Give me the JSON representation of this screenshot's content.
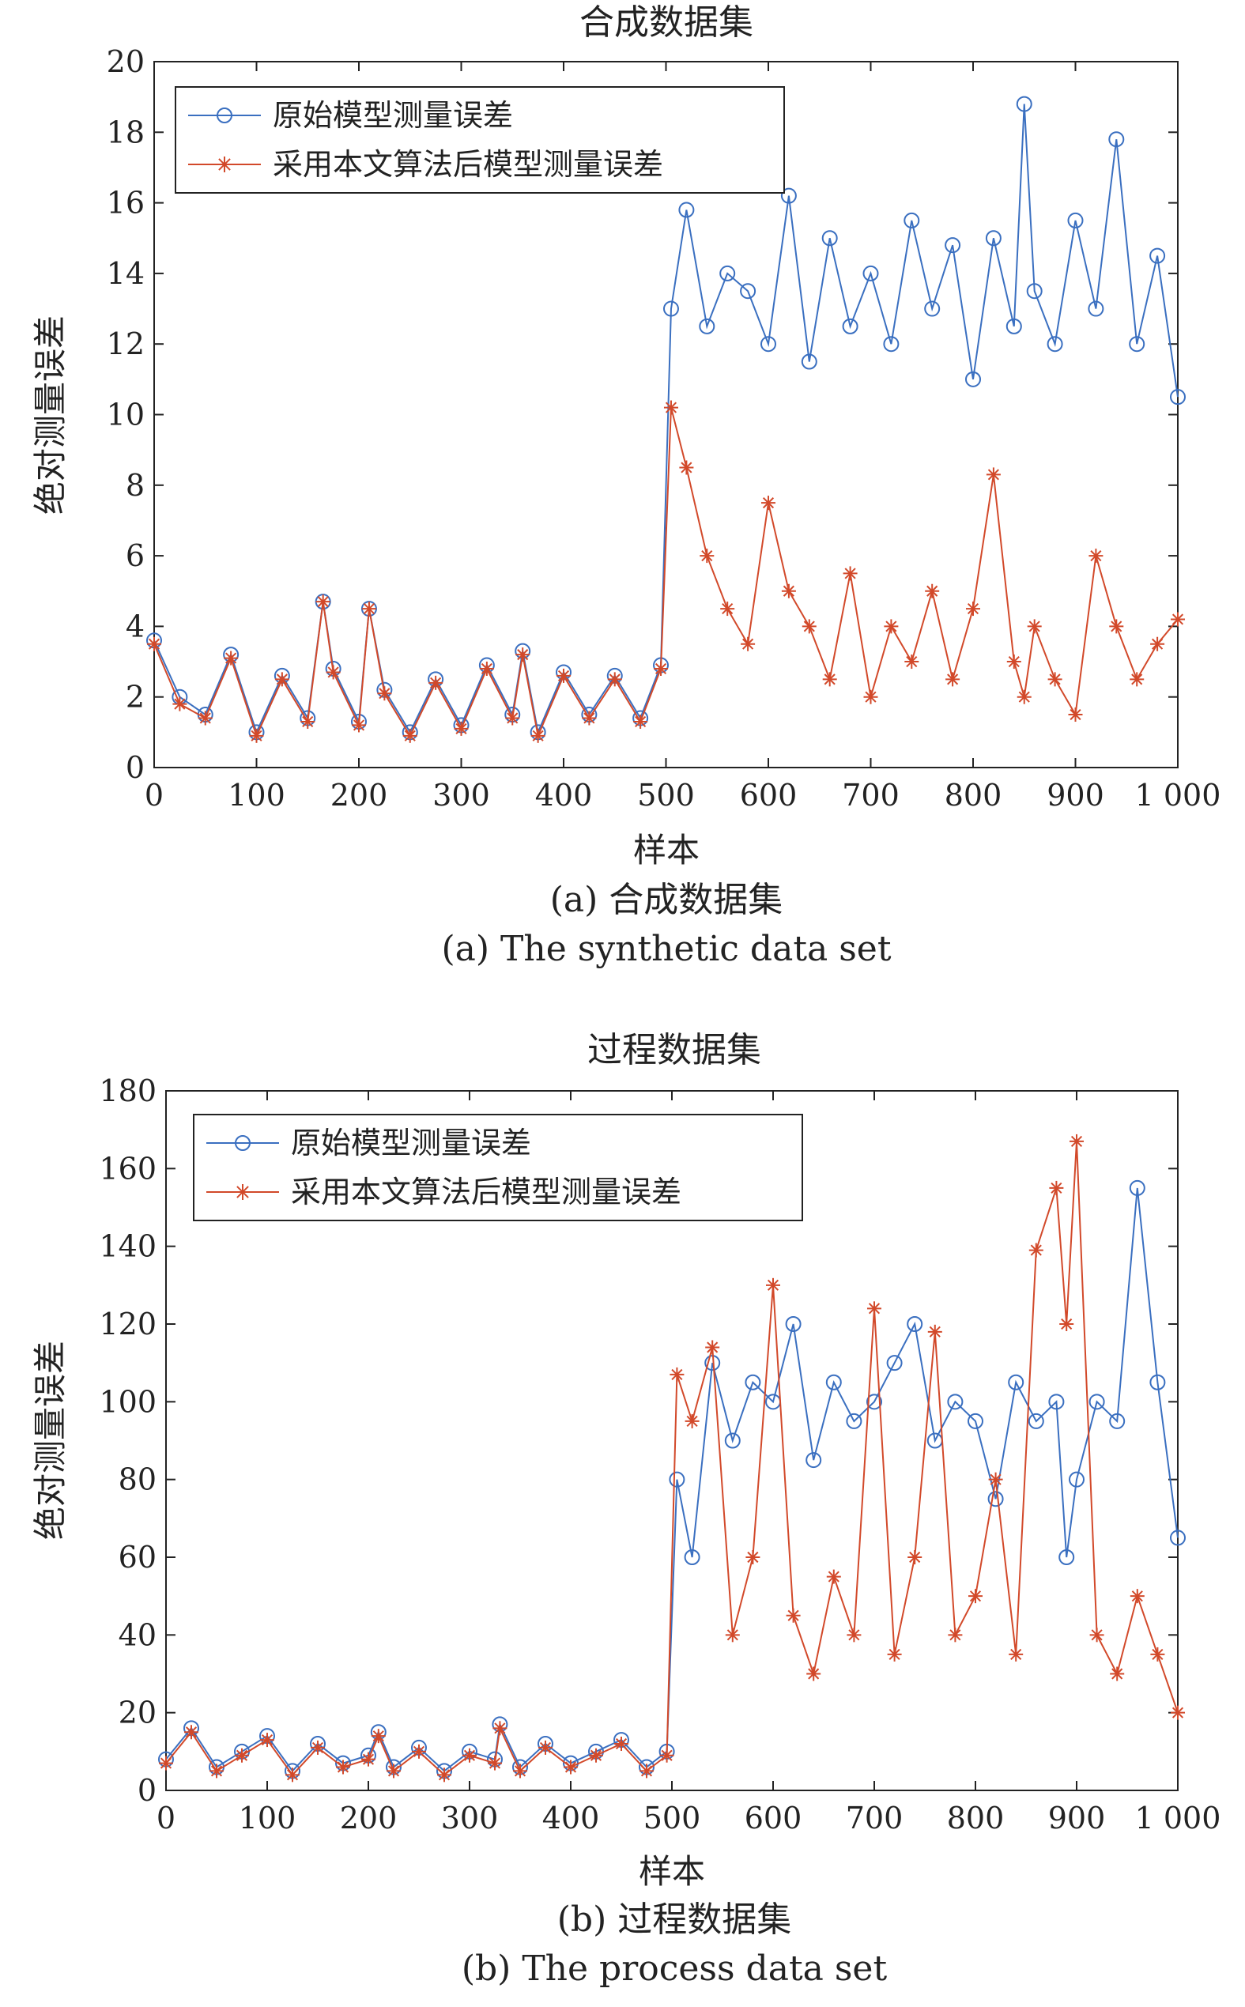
{
  "charts": [
    {
      "title": "合成数据集",
      "xlabel": "样本",
      "ylabel": "绝对测量误差",
      "caption_cn": "(a) 合成数据集",
      "caption_en": "(a) The synthetic data set",
      "ylim": [
        0,
        20
      ],
      "yticks": [
        "0",
        "2",
        "4",
        "6",
        "8",
        "10",
        "12",
        "14",
        "16",
        "18",
        "20"
      ],
      "xlim": [
        0,
        1000
      ],
      "xticks": [
        "0",
        "100",
        "200",
        "300",
        "400",
        "500",
        "600",
        "700",
        "800",
        "900",
        "1 000"
      ],
      "legend": [
        "原始模型测量误差",
        "采用本文算法后模型测量误差"
      ]
    },
    {
      "title": "过程数据集",
      "xlabel": "样本",
      "ylabel": "绝对测量误差",
      "caption_cn": "(b) 过程数据集",
      "caption_en": "(b) The process data set",
      "ylim": [
        0,
        180
      ],
      "yticks": [
        "0",
        "20",
        "40",
        "60",
        "80",
        "100",
        "120",
        "140",
        "160",
        "180"
      ],
      "xlim": [
        0,
        1000
      ],
      "xticks": [
        "0",
        "100",
        "200",
        "300",
        "400",
        "500",
        "600",
        "700",
        "800",
        "900",
        "1 000"
      ],
      "legend": [
        "原始模型测量误差",
        "采用本文算法后模型测量误差"
      ]
    }
  ],
  "colors": {
    "original": "#3A6FC0",
    "improved": "#D2492A"
  },
  "chart_data": [
    {
      "type": "line",
      "title": "合成数据集",
      "xlabel": "样本",
      "ylabel": "绝对测量误差",
      "xlim": [
        0,
        1000
      ],
      "ylim": [
        0,
        20
      ],
      "legend_position": "top-left",
      "x": [
        0,
        25,
        50,
        75,
        100,
        125,
        150,
        165,
        175,
        200,
        210,
        225,
        250,
        275,
        300,
        325,
        350,
        360,
        375,
        400,
        425,
        450,
        475,
        495,
        505,
        520,
        540,
        560,
        580,
        600,
        620,
        640,
        660,
        680,
        700,
        720,
        740,
        760,
        780,
        800,
        820,
        840,
        850,
        860,
        880,
        900,
        920,
        940,
        960,
        980,
        1000
      ],
      "series": [
        {
          "name": "原始模型测量误差",
          "values": [
            3.6,
            2.0,
            1.5,
            3.2,
            1.0,
            2.6,
            1.4,
            4.7,
            2.8,
            1.3,
            4.5,
            2.2,
            1.0,
            2.5,
            1.2,
            2.9,
            1.5,
            3.3,
            1.0,
            2.7,
            1.5,
            2.6,
            1.4,
            2.9,
            13.0,
            15.8,
            12.5,
            14.0,
            13.5,
            12.0,
            16.2,
            11.5,
            15.0,
            12.5,
            14.0,
            12.0,
            15.5,
            13.0,
            14.8,
            11.0,
            15.0,
            12.5,
            18.8,
            13.5,
            12.0,
            15.5,
            13.0,
            17.8,
            12.0,
            14.5,
            10.5
          ]
        },
        {
          "name": "采用本文算法后模型测量误差",
          "values": [
            3.5,
            1.8,
            1.4,
            3.1,
            0.9,
            2.5,
            1.3,
            4.7,
            2.7,
            1.2,
            4.5,
            2.1,
            0.9,
            2.4,
            1.1,
            2.8,
            1.4,
            3.2,
            0.9,
            2.6,
            1.4,
            2.5,
            1.3,
            2.8,
            10.2,
            8.5,
            6.0,
            4.5,
            3.5,
            7.5,
            5.0,
            4.0,
            2.5,
            5.5,
            2.0,
            4.0,
            3.0,
            5.0,
            2.5,
            4.5,
            8.3,
            3.0,
            2.0,
            4.0,
            2.5,
            1.5,
            6.0,
            4.0,
            2.5,
            3.5,
            4.2
          ]
        }
      ]
    },
    {
      "type": "line",
      "title": "过程数据集",
      "xlabel": "样本",
      "ylabel": "绝对测量误差",
      "xlim": [
        0,
        1000
      ],
      "ylim": [
        0,
        180
      ],
      "legend_position": "top-left",
      "x": [
        0,
        25,
        50,
        75,
        100,
        125,
        150,
        175,
        200,
        210,
        225,
        250,
        275,
        300,
        325,
        330,
        350,
        375,
        400,
        425,
        450,
        475,
        495,
        505,
        520,
        540,
        560,
        580,
        600,
        620,
        640,
        660,
        680,
        700,
        720,
        740,
        760,
        780,
        800,
        820,
        840,
        860,
        880,
        890,
        900,
        920,
        940,
        960,
        980,
        1000
      ],
      "series": [
        {
          "name": "原始模型测量误差",
          "values": [
            8,
            16,
            6,
            10,
            14,
            5,
            12,
            7,
            9,
            15,
            6,
            11,
            5,
            10,
            8,
            17,
            6,
            12,
            7,
            10,
            13,
            6,
            10,
            80,
            60,
            110,
            90,
            105,
            100,
            120,
            85,
            105,
            95,
            100,
            110,
            120,
            90,
            100,
            95,
            75,
            105,
            95,
            100,
            60,
            80,
            100,
            95,
            155,
            105,
            65
          ]
        },
        {
          "name": "采用本文算法后模型测量误差",
          "values": [
            7,
            15,
            5,
            9,
            13,
            4,
            11,
            6,
            8,
            14,
            5,
            10,
            4,
            9,
            7,
            16,
            5,
            11,
            6,
            9,
            12,
            5,
            9,
            107,
            95,
            114,
            40,
            60,
            130,
            45,
            30,
            55,
            40,
            124,
            35,
            60,
            118,
            40,
            50,
            80,
            35,
            139,
            155,
            120,
            167,
            40,
            30,
            50,
            35,
            20
          ]
        }
      ]
    }
  ]
}
